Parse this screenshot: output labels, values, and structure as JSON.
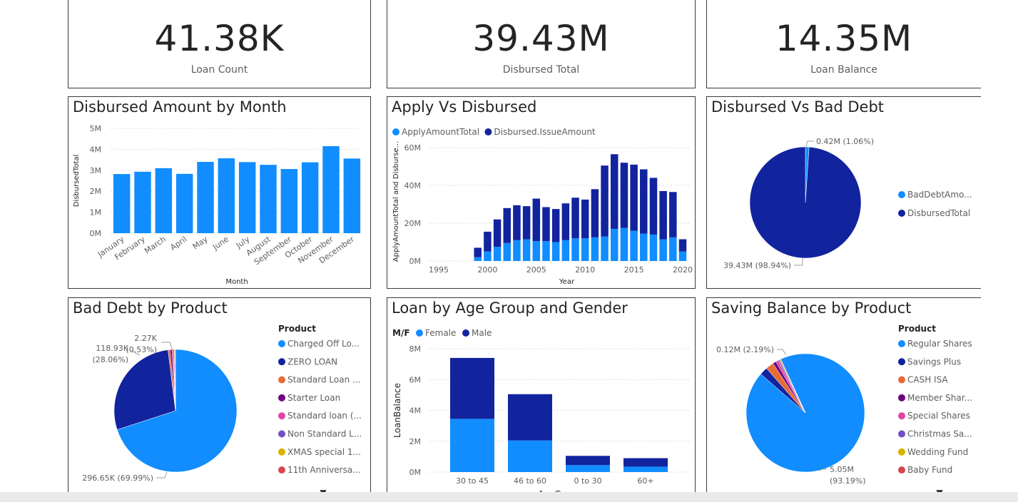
{
  "kpis": [
    {
      "value": "41.38K",
      "label": "Loan Count"
    },
    {
      "value": "39.43M",
      "label": "Disbursed Total"
    },
    {
      "value": "14.35M",
      "label": "Loan Balance"
    }
  ],
  "colors": {
    "light": "#118dff",
    "dark": "#12239e",
    "orange": "#e66c37",
    "purple": "#6b007b",
    "pink": "#e044a7",
    "violet": "#744ec2",
    "gold": "#d9b300",
    "red": "#d64550"
  },
  "charts": {
    "month": {
      "title": "Disbursed Amount by Month",
      "chart_data": {
        "type": "bar",
        "categories": [
          "January",
          "February",
          "March",
          "April",
          "May",
          "June",
          "July",
          "August",
          "September",
          "October",
          "November",
          "December"
        ],
        "values": [
          2.82,
          2.93,
          3.1,
          2.83,
          3.4,
          3.57,
          3.39,
          3.26,
          3.06,
          3.38,
          4.15,
          3.56
        ],
        "xlabel": "Month",
        "ylabel": "DisbursedTotal",
        "ylim": [
          0,
          5
        ],
        "yticks": [
          "0M",
          "1M",
          "2M",
          "3M",
          "4M",
          "5M"
        ],
        "color": "#118dff"
      }
    },
    "apply": {
      "title": "Apply Vs Disbursed",
      "chart_data": {
        "type": "bar",
        "stacked": true,
        "x": [
          1999,
          2000,
          2001,
          2002,
          2003,
          2004,
          2005,
          2006,
          2007,
          2008,
          2009,
          2010,
          2011,
          2012,
          2013,
          2014,
          2015,
          2016,
          2017,
          2018,
          2019,
          2020
        ],
        "series": [
          {
            "name": "ApplyAmountTotal",
            "color": "#118dff",
            "values": [
              2,
              5,
              7.5,
              9.5,
              11,
              11.5,
              10.5,
              10.5,
              10,
              11,
              12,
              12,
              12.5,
              13,
              17,
              17.5,
              16,
              14.5,
              14,
              11.5,
              12.5,
              5
            ]
          },
          {
            "name": "Disbursed.IssueAmount",
            "color": "#12239e",
            "values": [
              5,
              10.5,
              14.5,
              18.5,
              18.5,
              17.5,
              22.5,
              18,
              17.5,
              19.5,
              21.5,
              20.5,
              25.5,
              37.5,
              39.5,
              34.5,
              35,
              34,
              30,
              25.5,
              24,
              6.5
            ]
          }
        ],
        "xlabel": "Year",
        "ylabel": "ApplyAmountTotal and Disburse...",
        "xlim": [
          1995,
          2020
        ],
        "xticks": [
          "1995",
          "2000",
          "2005",
          "2010",
          "2015",
          "2020"
        ],
        "ylim": [
          0,
          60
        ],
        "yticks": [
          "0M",
          "20M",
          "40M",
          "60M"
        ]
      }
    },
    "baddebt": {
      "title": "Disbursed Vs Bad Debt",
      "chart_data": {
        "type": "pie",
        "labels": [
          "BadDebtAmo...",
          "DisbursedTotal"
        ],
        "values": [
          1.06,
          98.94
        ],
        "colors": [
          "#118dff",
          "#12239e"
        ],
        "data_labels": [
          "0.42M (1.06%)",
          "39.43M (98.94%)"
        ]
      }
    },
    "product": {
      "title": "Bad Debt by Product",
      "legend_title": "Product",
      "chart_data": {
        "type": "pie",
        "labels": [
          "Charged Off Lo...",
          "ZERO LOAN",
          "Standard Loan ...",
          "Starter Loan",
          "Standard loan (...",
          "Non Standard L...",
          "XMAS special 1...",
          "11th Anniversa..."
        ],
        "values": [
          69.99,
          28.06,
          0.53,
          0.5,
          0.35,
          0.25,
          0.17,
          0.15
        ],
        "colors": [
          "#118dff",
          "#12239e",
          "#e66c37",
          "#6b007b",
          "#e044a7",
          "#744ec2",
          "#d9b300",
          "#d64550"
        ],
        "data_labels": {
          "first_line": "296.65K (69.99%)",
          "second_line1": "118.93K",
          "second_line2": "(28.06%)",
          "third_line1": "2.27K",
          "third_line2": "(0.53%)"
        }
      }
    },
    "age": {
      "title": "Loan by Age Group and Gender",
      "legend_title": "M/F",
      "chart_data": {
        "type": "bar",
        "stacked": true,
        "categories": [
          "30 to 45",
          "46 to 60",
          "0 to 30",
          "60+"
        ],
        "series": [
          {
            "name": "Female",
            "color": "#118dff",
            "values": [
              3.45,
              2.05,
              0.45,
              0.35
            ]
          },
          {
            "name": "Male",
            "color": "#12239e",
            "values": [
              3.95,
              3.0,
              0.6,
              0.55
            ]
          }
        ],
        "xlabel": "AgeGroup",
        "ylabel": "LoanBalance",
        "ylim": [
          0,
          8
        ],
        "yticks": [
          "0M",
          "2M",
          "4M",
          "6M",
          "8M"
        ]
      }
    },
    "saving": {
      "title": "Saving Balance by Product",
      "legend_title": "Product",
      "chart_data": {
        "type": "pie",
        "labels": [
          "Regular Shares",
          "Savings Plus",
          "CASH ISA",
          "Member Shar...",
          "Special Shares",
          "Christmas Sa...",
          "Wedding Fund",
          "Baby Fund"
        ],
        "values": [
          93.19,
          2.19,
          2.2,
          0.9,
          0.7,
          0.4,
          0.22,
          0.2
        ],
        "colors": [
          "#118dff",
          "#12239e",
          "#e66c37",
          "#6b007b",
          "#e044a7",
          "#744ec2",
          "#d9b300",
          "#d64550"
        ],
        "data_labels": {
          "first_line1": "5.05M",
          "first_line2": "(93.19%)",
          "second_line": "0.12M (2.19%)"
        }
      }
    }
  }
}
